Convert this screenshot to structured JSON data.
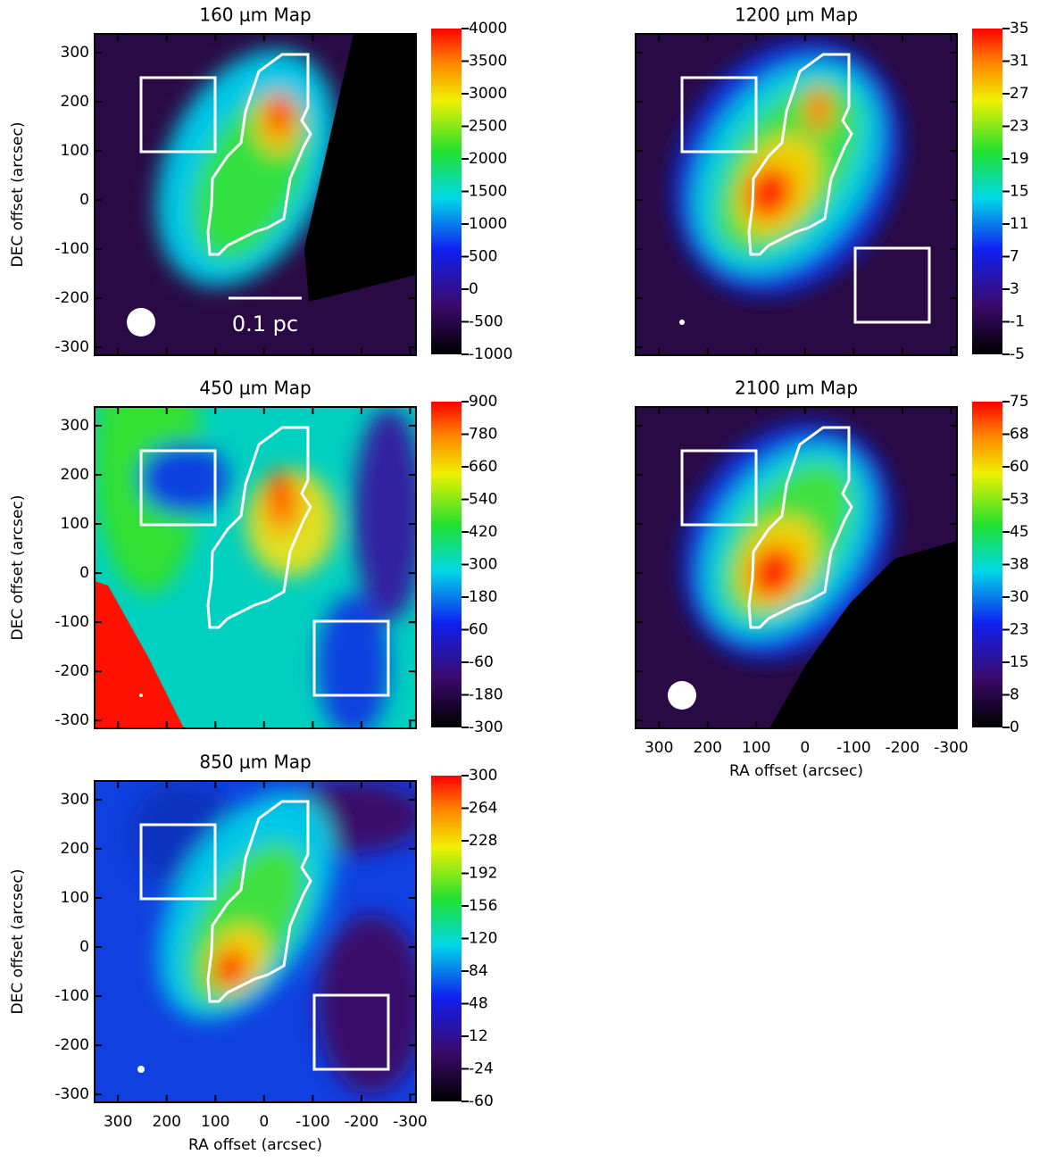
{
  "chart_data": [
    {
      "type": "heatmap",
      "title": "160 μm Map",
      "ylabel": "DEC offset (arcsec)",
      "annotation": "0.1 pc",
      "xlim": [
        348,
        -312
      ],
      "ylim": [
        -316,
        338
      ],
      "xticks": [
        300,
        200,
        100,
        0,
        -100,
        -200,
        -300
      ],
      "yticks": [
        -300,
        -200,
        -100,
        0,
        100,
        200,
        300
      ],
      "colorbar_ticks": [
        -1000,
        -500,
        0,
        500,
        1000,
        1500,
        2000,
        2500,
        3000,
        3500,
        4000
      ]
    },
    {
      "type": "heatmap",
      "title": "1200 μm Map",
      "xlim": [
        348,
        -312
      ],
      "ylim": [
        -316,
        338
      ],
      "xticks": [
        300,
        200,
        100,
        0,
        -100,
        -200,
        -300
      ],
      "yticks": [
        -300,
        -200,
        -100,
        0,
        100,
        200,
        300
      ],
      "colorbar_ticks": [
        -5,
        -1,
        3,
        7,
        11,
        15,
        19,
        23,
        27,
        31,
        35
      ]
    },
    {
      "type": "heatmap",
      "title": "450 μm Map",
      "ylabel": "DEC offset (arcsec)",
      "xlim": [
        348,
        -312
      ],
      "ylim": [
        -316,
        338
      ],
      "xticks": [
        300,
        200,
        100,
        0,
        -100,
        -200,
        -300
      ],
      "yticks": [
        -300,
        -200,
        -100,
        0,
        100,
        200,
        300
      ],
      "colorbar_ticks": [
        -300,
        -180,
        -60,
        60,
        180,
        300,
        420,
        540,
        660,
        780,
        900
      ]
    },
    {
      "type": "heatmap",
      "title": "2100 μm Map",
      "xlabel": "RA offset (arcsec)",
      "xlim": [
        348,
        -312
      ],
      "ylim": [
        -316,
        338
      ],
      "xticks": [
        300,
        200,
        100,
        0,
        -100,
        -200,
        -300
      ],
      "yticks": [
        -300,
        -200,
        -100,
        0,
        100,
        200,
        300
      ],
      "colorbar_ticks": [
        0,
        {
          "value": 7.5,
          "label": "8"
        },
        15,
        {
          "value": 22.5,
          "label": "23"
        },
        30,
        {
          "value": 37.5,
          "label": "38"
        },
        45,
        {
          "value": 52.5,
          "label": "53"
        },
        60,
        {
          "value": 67.5,
          "label": "68"
        },
        75
      ]
    },
    {
      "type": "heatmap",
      "title": "850 μm Map",
      "ylabel": "DEC offset (arcsec)",
      "xlabel": "RA offset (arcsec)",
      "xlim": [
        348,
        -312
      ],
      "ylim": [
        -316,
        338
      ],
      "xticks": [
        300,
        200,
        100,
        0,
        -100,
        -200,
        -300
      ],
      "yticks": [
        -300,
        -200,
        -100,
        0,
        100,
        200,
        300
      ],
      "colorbar_ticks": [
        -60,
        -24,
        12,
        48,
        84,
        120,
        156,
        192,
        228,
        264,
        300
      ]
    }
  ]
}
